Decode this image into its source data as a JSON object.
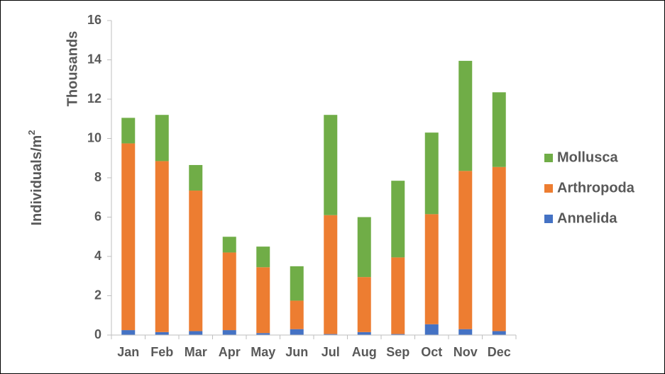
{
  "chart_data": {
    "type": "bar",
    "stacked": true,
    "categories": [
      "Jan",
      "Feb",
      "Mar",
      "Apr",
      "May",
      "Jun",
      "Jul",
      "Aug",
      "Sep",
      "Oct",
      "Nov",
      "Dec"
    ],
    "series": [
      {
        "name": "Annelida",
        "color": "#4472C4",
        "values": [
          0.25,
          0.15,
          0.2,
          0.25,
          0.1,
          0.3,
          0.05,
          0.15,
          0.05,
          0.55,
          0.3,
          0.2
        ]
      },
      {
        "name": "Arthropoda",
        "color": "#ED7D31",
        "values": [
          9.5,
          8.7,
          7.15,
          3.95,
          3.35,
          1.45,
          6.05,
          2.8,
          3.9,
          5.6,
          8.05,
          8.35
        ]
      },
      {
        "name": "Mollusca",
        "color": "#70AD47",
        "values": [
          1.3,
          2.35,
          1.3,
          0.8,
          1.05,
          1.75,
          5.1,
          3.05,
          3.9,
          4.15,
          5.6,
          3.8
        ]
      }
    ],
    "ylim": [
      0,
      16
    ],
    "yticks": [
      "0",
      "2",
      "4",
      "6",
      "8",
      "10",
      "12",
      "14",
      "16"
    ],
    "ylabel": "Individuals/m",
    "ylabel_superscript": "2",
    "yunit": "Thousands",
    "legend_order": [
      "Mollusca",
      "Arthropoda",
      "Annelida"
    ],
    "legend_position": "right",
    "grid": false
  }
}
